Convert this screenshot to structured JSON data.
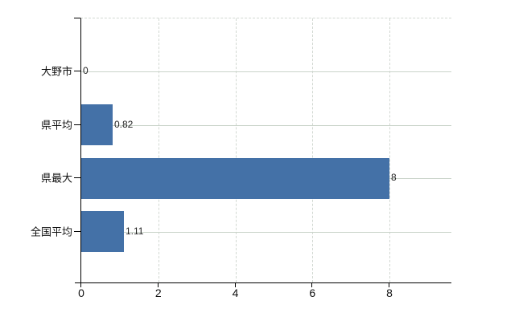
{
  "chart_data": {
    "type": "bar",
    "orientation": "horizontal",
    "title": "",
    "xlabel": "",
    "ylabel": "",
    "categories": [
      "大野市",
      "県平均",
      "県最大",
      "全国平均"
    ],
    "values": [
      0,
      0.82,
      8,
      1.11
    ],
    "data_labels": [
      "0",
      "0.82",
      "8",
      "1.11"
    ],
    "xticks": [
      0,
      2,
      4,
      6,
      8
    ],
    "xlim": [
      0,
      9.63
    ],
    "grid": true,
    "legend": false,
    "bar_color": "#4471a7",
    "gridline_color": "#c9d3c9",
    "axis_color": "#000000",
    "label_color": "#111111"
  }
}
